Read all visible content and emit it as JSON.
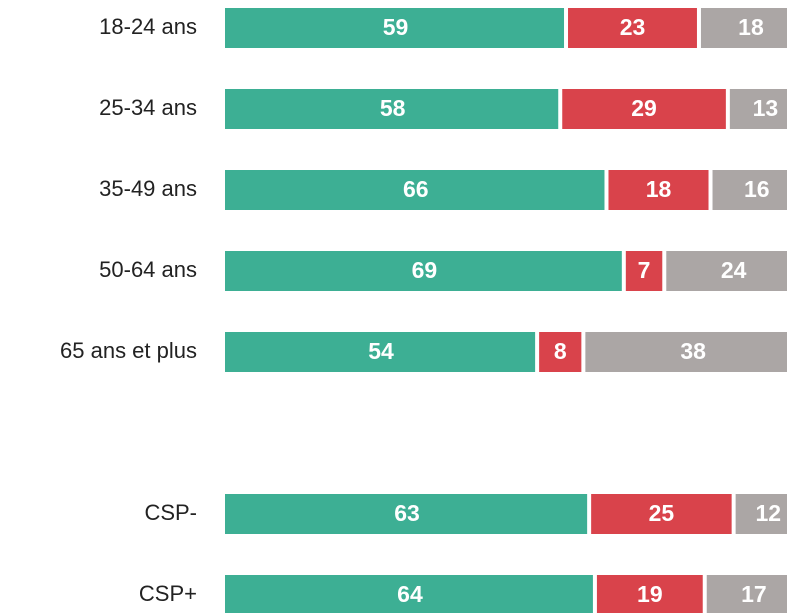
{
  "chart_data": {
    "type": "stacked-bar-horizontal",
    "categories": [
      "18-24 ans",
      "25-34 ans",
      "35-49 ans",
      "50-64 ans",
      "65 ans et plus",
      null,
      "CSP-",
      "CSP+"
    ],
    "series": [
      {
        "color": "#3daf94",
        "values": [
          59,
          58,
          66,
          69,
          54,
          null,
          63,
          64
        ]
      },
      {
        "color": "#d9434b",
        "values": [
          23,
          29,
          18,
          7,
          8,
          null,
          25,
          19
        ]
      },
      {
        "color": "#aba6a5",
        "values": [
          18,
          13,
          16,
          24,
          38,
          null,
          12,
          17
        ]
      }
    ],
    "xlim": [
      0,
      100
    ]
  }
}
